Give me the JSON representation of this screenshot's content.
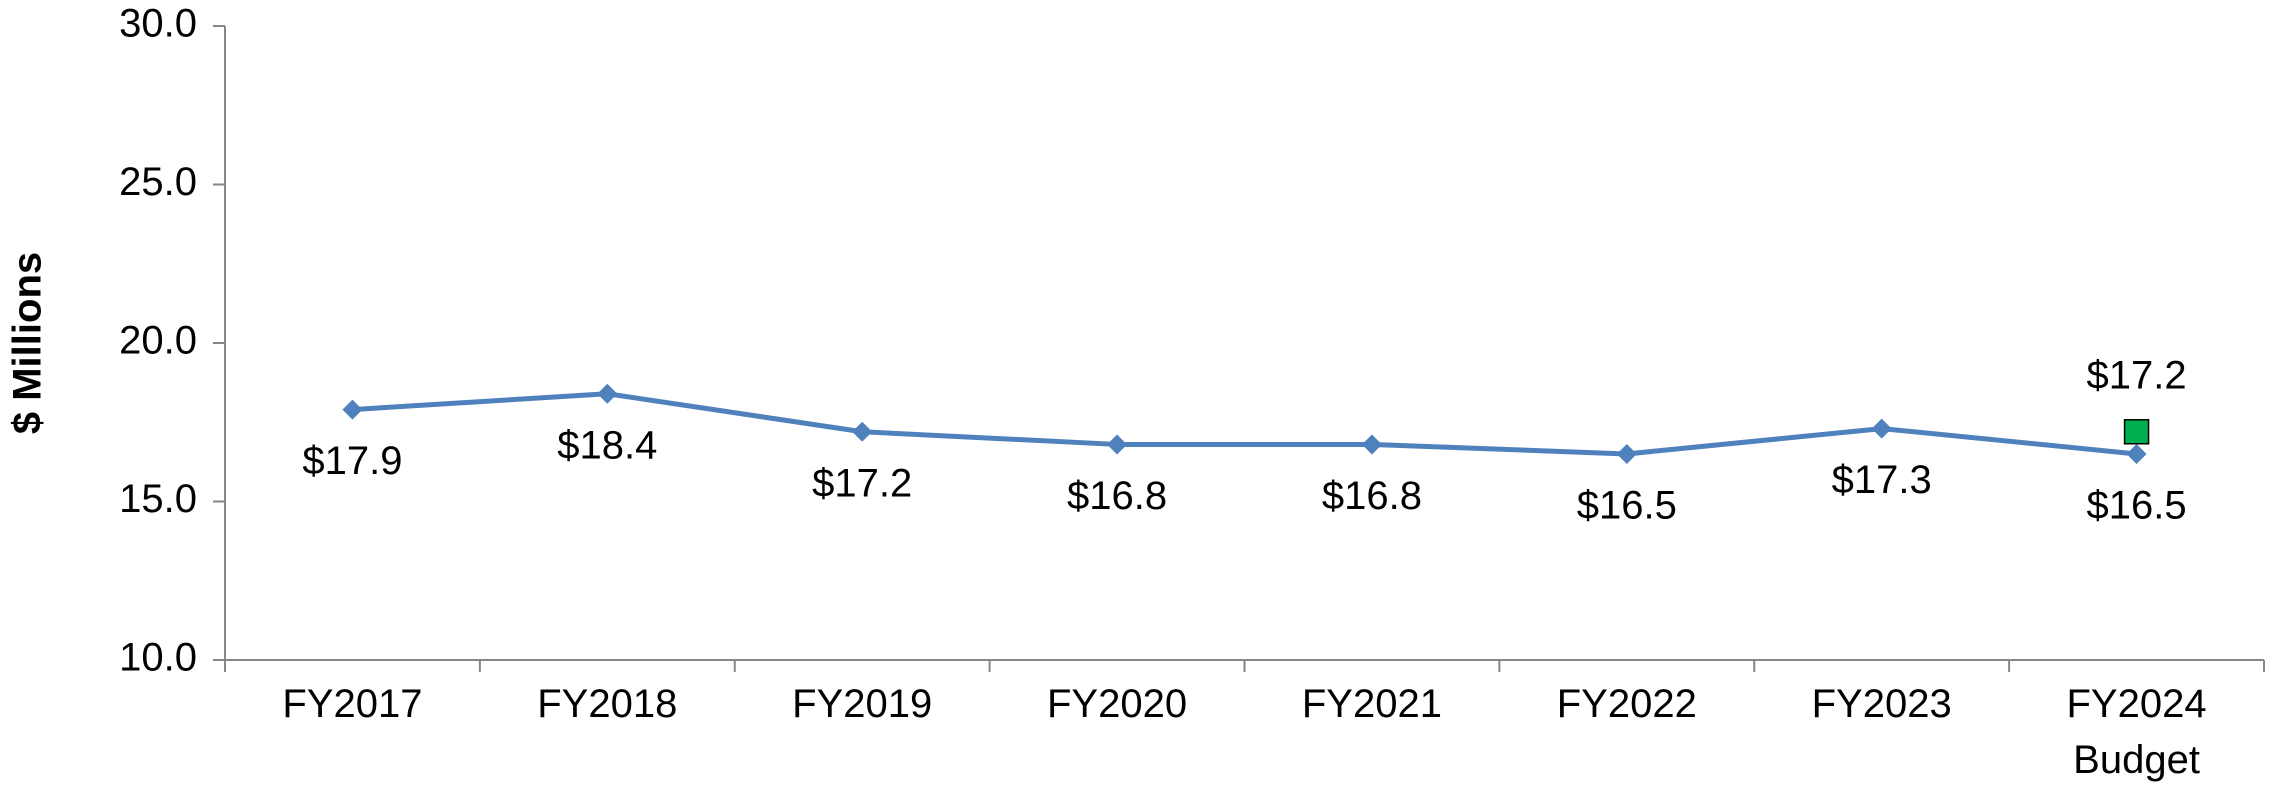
{
  "chart_data": {
    "type": "line",
    "y_label": "$ Millions",
    "categories": [
      "FY2017",
      "FY2018",
      "FY2019",
      "FY2020",
      "FY2021",
      "FY2022",
      "FY2023",
      "FY2024 Budget"
    ],
    "series": [
      {
        "color": "#4f81bd",
        "marker": "diamond",
        "label_position": "below",
        "values": [
          17.9,
          18.4,
          17.2,
          16.8,
          16.8,
          16.5,
          17.3,
          16.5
        ],
        "value_labels": [
          "$17.9",
          "$18.4",
          "$17.2",
          "$16.8",
          "$16.8",
          "$16.5",
          "$17.3",
          "$16.5"
        ]
      },
      {
        "color": "#00b050",
        "marker": "square",
        "label_position": "above",
        "values": [
          null,
          null,
          null,
          null,
          null,
          null,
          null,
          17.2
        ],
        "value_labels": [
          null,
          null,
          null,
          null,
          null,
          null,
          null,
          "$17.2"
        ]
      }
    ],
    "ylim": [
      10,
      30
    ],
    "yticks": [
      {
        "value": 10,
        "label": "10.0"
      },
      {
        "value": 15,
        "label": "15.0"
      },
      {
        "value": 20,
        "label": "20.0"
      },
      {
        "value": 25,
        "label": "25.0"
      },
      {
        "value": 30,
        "label": "30.0"
      }
    ],
    "grid": false
  }
}
